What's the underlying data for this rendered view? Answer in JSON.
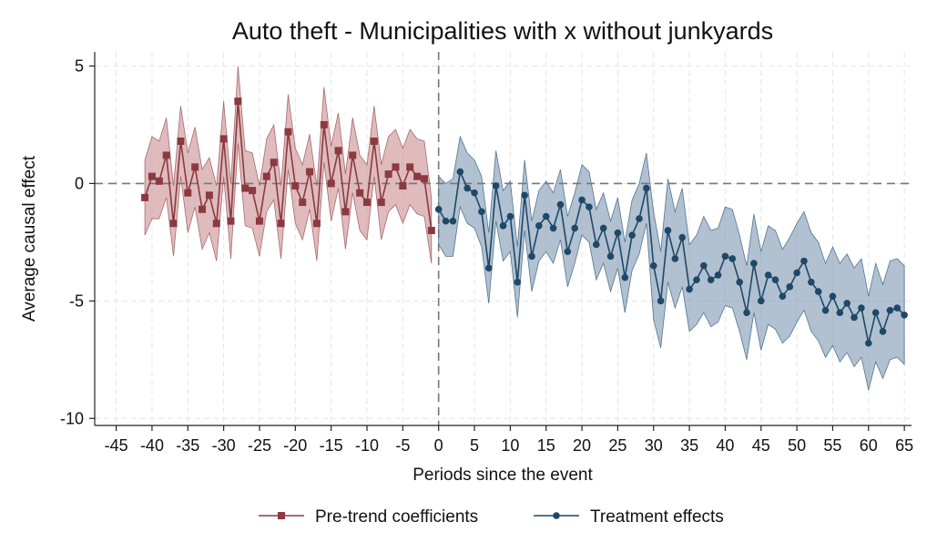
{
  "chart_data": {
    "type": "line",
    "title": "Auto theft - Municipalities with x without junkyards",
    "xlabel": "Periods since the event",
    "ylabel": "Average causal effect",
    "xlim": [
      -48,
      66
    ],
    "ylim": [
      -10.3,
      5.6
    ],
    "xticks": [
      -45,
      -40,
      -35,
      -30,
      -25,
      -20,
      -15,
      -10,
      -5,
      0,
      5,
      10,
      15,
      20,
      25,
      30,
      35,
      40,
      45,
      50,
      55,
      60,
      65
    ],
    "yticks": [
      -10,
      -5,
      0,
      5
    ],
    "grid": true,
    "legend_position": "bottom",
    "reference_lines": {
      "x": 0,
      "y": 0
    },
    "colors": {
      "pre_line": "#8b3a3f",
      "pre_band": "#c98d92",
      "post_line": "#1e4868",
      "post_band": "#7d97b3"
    },
    "series": [
      {
        "name": "Pre-trend coefficients",
        "marker": "square",
        "x": [
          -41,
          -40,
          -39,
          -38,
          -37,
          -36,
          -35,
          -34,
          -33,
          -32,
          -31,
          -30,
          -29,
          -28,
          -27,
          -26,
          -25,
          -24,
          -23,
          -22,
          -21,
          -20,
          -19,
          -18,
          -17,
          -16,
          -15,
          -14,
          -13,
          -12,
          -11,
          -10,
          -9,
          -8,
          -7,
          -6,
          -5,
          -4,
          -3,
          -2,
          -1
        ],
        "y": [
          -0.6,
          0.3,
          0.1,
          1.2,
          -1.7,
          1.8,
          -0.4,
          0.7,
          -1.1,
          -0.5,
          -1.7,
          1.9,
          -1.6,
          3.5,
          -0.2,
          -0.3,
          -1.6,
          0.3,
          0.9,
          -1.7,
          2.2,
          -0.1,
          -0.8,
          0.5,
          -1.7,
          2.5,
          0.0,
          1.4,
          -1.2,
          1.2,
          -0.4,
          -0.8,
          1.8,
          -0.8,
          0.4,
          0.7,
          -0.1,
          0.7,
          0.3,
          0.2,
          -2.0
        ],
        "lower": [
          -2.2,
          -1.5,
          -1.5,
          -0.6,
          -3.1,
          0.3,
          -2.1,
          -1.0,
          -2.8,
          -2.1,
          -3.3,
          0.3,
          -3.2,
          1.7,
          -1.8,
          -1.9,
          -3.1,
          -1.2,
          -0.7,
          -3.2,
          0.6,
          -1.7,
          -2.4,
          -1.1,
          -3.3,
          0.9,
          -1.6,
          -0.2,
          -2.8,
          -0.4,
          -2.0,
          -2.4,
          0.3,
          -2.4,
          -1.2,
          -0.9,
          -1.7,
          -0.9,
          -1.3,
          -1.4,
          -3.4
        ],
        "upper": [
          1.0,
          2.0,
          1.8,
          2.8,
          -0.1,
          3.3,
          1.3,
          2.4,
          0.6,
          1.1,
          -0.1,
          3.5,
          0.0,
          5.0,
          1.4,
          1.3,
          -0.1,
          1.9,
          2.5,
          -0.1,
          3.8,
          1.5,
          0.8,
          2.1,
          -0.1,
          4.1,
          1.6,
          3.0,
          0.4,
          2.8,
          1.2,
          0.8,
          3.3,
          0.8,
          2.0,
          2.3,
          1.5,
          2.3,
          1.9,
          1.8,
          -0.6
        ]
      },
      {
        "name": "Treatment effects",
        "marker": "circle",
        "x": [
          0,
          1,
          2,
          3,
          4,
          5,
          6,
          7,
          8,
          9,
          10,
          11,
          12,
          13,
          14,
          15,
          16,
          17,
          18,
          19,
          20,
          21,
          22,
          23,
          24,
          25,
          26,
          27,
          28,
          29,
          30,
          31,
          32,
          33,
          34,
          35,
          36,
          37,
          38,
          39,
          40,
          41,
          42,
          43,
          44,
          45,
          46,
          47,
          48,
          49,
          50,
          51,
          52,
          53,
          54,
          55,
          56,
          57,
          58,
          59,
          60,
          61,
          62,
          63,
          64,
          65
        ],
        "y": [
          -1.1,
          -1.6,
          -1.6,
          0.5,
          -0.2,
          -0.4,
          -1.2,
          -3.6,
          -0.1,
          -1.8,
          -1.4,
          -4.2,
          -0.5,
          -3.1,
          -1.8,
          -1.4,
          -1.9,
          -0.9,
          -2.9,
          -1.9,
          -0.7,
          -1.0,
          -2.6,
          -1.9,
          -3.1,
          -2.1,
          -4.0,
          -2.2,
          -1.5,
          -0.2,
          -3.5,
          -5.0,
          -2.0,
          -3.2,
          -2.3,
          -4.5,
          -4.1,
          -3.5,
          -4.1,
          -3.9,
          -3.1,
          -3.2,
          -4.2,
          -5.5,
          -3.4,
          -5.0,
          -3.9,
          -4.1,
          -4.8,
          -4.4,
          -3.8,
          -3.3,
          -4.2,
          -4.6,
          -5.4,
          -4.8,
          -5.5,
          -5.1,
          -5.7,
          -5.3,
          -6.8,
          -5.5,
          -6.3,
          -5.4,
          -5.3,
          -5.6
        ],
        "lower": [
          -2.6,
          -3.1,
          -3.1,
          -1.0,
          -1.7,
          -1.9,
          -2.7,
          -5.1,
          -1.6,
          -3.3,
          -2.9,
          -5.7,
          -2.0,
          -4.6,
          -3.3,
          -2.9,
          -3.4,
          -2.4,
          -4.4,
          -3.4,
          -2.2,
          -2.5,
          -4.1,
          -3.4,
          -4.6,
          -3.6,
          -5.5,
          -3.7,
          -3.0,
          -1.7,
          -5.8,
          -7.0,
          -4.2,
          -5.3,
          -4.4,
          -6.3,
          -6.0,
          -5.5,
          -6.1,
          -5.9,
          -5.2,
          -5.3,
          -6.3,
          -7.5,
          -5.5,
          -7.1,
          -6.0,
          -6.2,
          -6.8,
          -6.5,
          -5.9,
          -5.4,
          -6.3,
          -6.7,
          -7.4,
          -6.9,
          -7.6,
          -7.2,
          -7.8,
          -7.4,
          -8.8,
          -7.6,
          -8.3,
          -7.5,
          -7.4,
          -7.7
        ],
        "upper": [
          0.3,
          0.0,
          0.2,
          2.0,
          1.3,
          1.0,
          0.3,
          -2.1,
          1.4,
          -0.3,
          0.1,
          -2.7,
          1.0,
          -1.6,
          -0.3,
          0.1,
          -0.4,
          0.6,
          -1.4,
          -0.4,
          0.8,
          0.5,
          -1.1,
          -0.4,
          -1.6,
          -0.6,
          -2.5,
          -0.7,
          0.0,
          1.3,
          -1.2,
          -2.9,
          0.2,
          -1.2,
          -0.2,
          -2.6,
          -2.2,
          -1.4,
          -2.0,
          -1.9,
          -1.0,
          -1.1,
          -2.2,
          -3.5,
          -1.3,
          -2.9,
          -1.8,
          -2.0,
          -2.8,
          -2.3,
          -1.7,
          -1.2,
          -2.1,
          -2.5,
          -3.4,
          -2.7,
          -3.4,
          -3.0,
          -3.6,
          -3.2,
          -4.8,
          -3.4,
          -4.3,
          -3.3,
          -3.2,
          -3.5
        ]
      }
    ]
  }
}
